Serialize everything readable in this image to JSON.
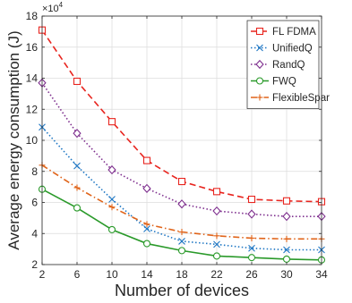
{
  "chart_data": {
    "type": "line",
    "title": "",
    "xlabel": "Number of devices",
    "ylabel": "Average energy consumption (J)",
    "y_multiplier": "×10",
    "y_multiplier_exp": "4",
    "x": [
      2,
      6,
      10,
      14,
      18,
      22,
      26,
      30,
      34
    ],
    "xlim": [
      2,
      34
    ],
    "ylim": [
      2,
      18
    ],
    "x_ticks": [
      "2",
      "6",
      "10",
      "14",
      "18",
      "22",
      "26",
      "30",
      "34"
    ],
    "y_ticks": [
      "2",
      "4",
      "6",
      "8",
      "10",
      "12",
      "14",
      "16",
      "18"
    ],
    "grid": true,
    "legend_position": "top-right",
    "series": [
      {
        "name": "FL FDMA",
        "color": "#e8251f",
        "dash": "dashed",
        "marker": "square",
        "values": [
          17.1,
          13.8,
          11.2,
          8.7,
          7.35,
          6.7,
          6.2,
          6.1,
          6.05
        ]
      },
      {
        "name": "UnifiedQ",
        "color": "#1f77c4",
        "dash": "dotted",
        "marker": "x",
        "values": [
          10.85,
          8.35,
          6.2,
          4.3,
          3.5,
          3.3,
          3.05,
          2.95,
          2.95
        ]
      },
      {
        "name": "RandQ",
        "color": "#7e2f8e",
        "dash": "dotted",
        "marker": "diamond",
        "values": [
          13.7,
          10.45,
          8.1,
          6.9,
          5.9,
          5.45,
          5.25,
          5.1,
          5.1
        ]
      },
      {
        "name": "FWQ",
        "color": "#2a9a2a",
        "dash": "solid",
        "marker": "circle",
        "values": [
          6.85,
          5.65,
          4.25,
          3.35,
          2.9,
          2.55,
          2.45,
          2.35,
          2.3
        ]
      },
      {
        "name": "FlexibleSpar",
        "color": "#e0641a",
        "dash": "dashdot",
        "marker": "plus",
        "values": [
          8.4,
          6.95,
          5.7,
          4.6,
          4.1,
          3.85,
          3.7,
          3.65,
          3.65
        ]
      }
    ]
  }
}
